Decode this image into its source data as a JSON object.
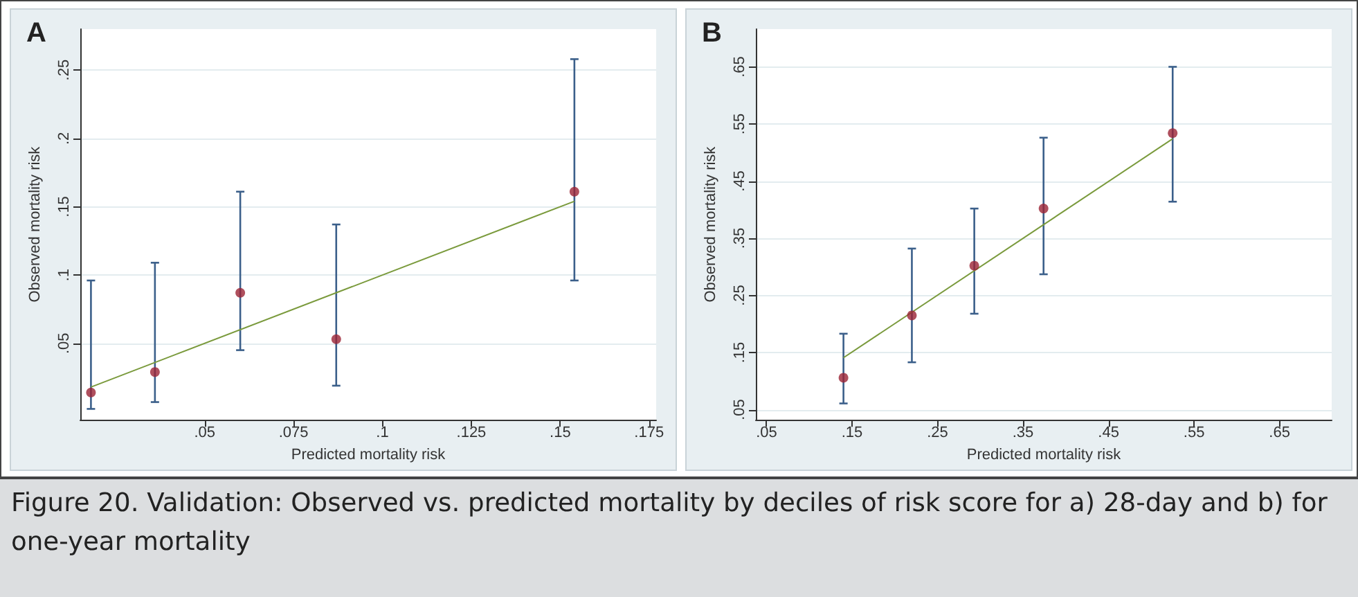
{
  "chart_data": [
    {
      "type": "scatter",
      "title": "A",
      "xlabel": "Predicted mortality risk",
      "ylabel": "Observed mortality risk",
      "xlim": [
        0.015,
        0.177
      ],
      "ylim": [
        -0.006,
        0.28
      ],
      "xticks": [
        {
          "value": 0.05,
          "label": ".05"
        },
        {
          "value": 0.075,
          "label": ".075"
        },
        {
          "value": 0.1,
          "label": ".1"
        },
        {
          "value": 0.125,
          "label": ".125"
        },
        {
          "value": 0.15,
          "label": ".15"
        },
        {
          "value": 0.175,
          "label": ".175"
        }
      ],
      "yticks": [
        {
          "value": 0.05,
          "label": ".05"
        },
        {
          "value": 0.1,
          "label": ".1"
        },
        {
          "value": 0.15,
          "label": ".15"
        },
        {
          "value": 0.2,
          "label": ".2"
        },
        {
          "value": 0.25,
          "label": ".25"
        }
      ],
      "grid": "y",
      "series": [
        {
          "color": "#9b2335",
          "marker": "circle",
          "x": [
            0.018,
            0.036,
            0.06,
            0.087,
            0.154
          ],
          "values": [
            0.014,
            0.029,
            0.087,
            0.053,
            0.161
          ],
          "errors": [
            [
              0.002,
              0.096
            ],
            [
              0.007,
              0.109
            ],
            [
              0.045,
              0.161
            ],
            [
              0.019,
              0.137
            ],
            [
              0.096,
              0.258
            ]
          ]
        },
        {
          "type": "line",
          "color": "#7a9a3c",
          "marker": "none",
          "x": [
            0.018,
            0.154
          ],
          "values": [
            0.018,
            0.154
          ]
        }
      ],
      "annotations": [
        "Figure 20. Validation: Observed vs. predicted mortality by deciles of risk score for a) 28-day and b) for one-year mortality"
      ]
    },
    {
      "type": "scatter",
      "title": "B",
      "xlabel": "Predicted mortality risk",
      "ylabel": "Observed mortality risk",
      "xlim": [
        0.0375,
        0.711
      ],
      "ylim": [
        0.0323,
        0.716
      ],
      "xticks": [
        {
          "value": 0.05,
          "label": ".05"
        },
        {
          "value": 0.15,
          "label": ".15"
        },
        {
          "value": 0.25,
          "label": ".25"
        },
        {
          "value": 0.35,
          "label": ".35"
        },
        {
          "value": 0.45,
          "label": ".45"
        },
        {
          "value": 0.55,
          "label": ".55"
        },
        {
          "value": 0.65,
          "label": ".65"
        }
      ],
      "yticks": [
        {
          "value": 0.05,
          "label": ".05"
        },
        {
          "value": 0.15,
          "label": ".15"
        },
        {
          "value": 0.25,
          "label": ".25"
        },
        {
          "value": 0.35,
          "label": ".35"
        },
        {
          "value": 0.45,
          "label": ".45"
        },
        {
          "value": 0.55,
          "label": ".55"
        },
        {
          "value": 0.65,
          "label": ".65"
        }
      ],
      "grid": "y",
      "series": [
        {
          "color": "#9b2335",
          "marker": "circle",
          "x": [
            0.14,
            0.22,
            0.293,
            0.374,
            0.525
          ],
          "values": [
            0.106,
            0.215,
            0.302,
            0.402,
            0.534
          ],
          "errors": [
            [
              0.061,
              0.183
            ],
            [
              0.133,
              0.332
            ],
            [
              0.218,
              0.402
            ],
            [
              0.287,
              0.526
            ],
            [
              0.414,
              0.65
            ]
          ]
        },
        {
          "type": "line",
          "color": "#7a9a3c",
          "marker": "none",
          "x": [
            0.14,
            0.525
          ],
          "values": [
            0.141,
            0.524
          ]
        }
      ]
    }
  ]
}
